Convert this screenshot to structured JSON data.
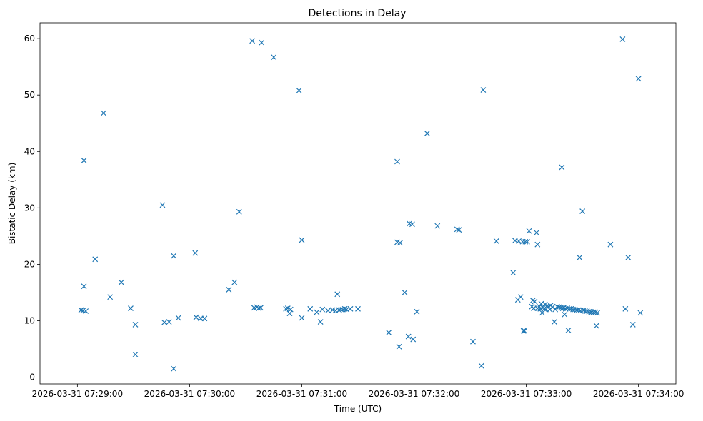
{
  "chart_data": {
    "type": "scatter",
    "title": "Detections in Delay",
    "xlabel": "Time (UTC)",
    "ylabel": "Bistatic Delay (km)",
    "marker": "x",
    "color": "#1f77b4",
    "grid": false,
    "xlim_seconds": [
      -20,
      320
    ],
    "ylim": [
      -1.2,
      62.8
    ],
    "x_ticks": [
      {
        "t": 0,
        "label": "2026-03-31 07:29:00"
      },
      {
        "t": 60,
        "label": "2026-03-31 07:30:00"
      },
      {
        "t": 120,
        "label": "2026-03-31 07:31:00"
      },
      {
        "t": 180,
        "label": "2026-03-31 07:32:00"
      },
      {
        "t": 240,
        "label": "2026-03-31 07:33:00"
      },
      {
        "t": 300,
        "label": "2026-03-31 07:34:00"
      }
    ],
    "y_ticks": [
      0,
      10,
      20,
      30,
      40,
      50,
      60
    ],
    "x_unit_note": "t is seconds after 2026-03-31 07:29:00 UTC",
    "series": [
      {
        "name": "detections",
        "points": [
          [
            2,
            11.9
          ],
          [
            3,
            11.8
          ],
          [
            3.5,
            38.4
          ],
          [
            3.5,
            16.1
          ],
          [
            4.5,
            11.7
          ],
          [
            9.5,
            20.9
          ],
          [
            14,
            46.8
          ],
          [
            17.5,
            14.2
          ],
          [
            23.5,
            16.8
          ],
          [
            28.5,
            12.2
          ],
          [
            31,
            9.3
          ],
          [
            31,
            4.0
          ],
          [
            45.5,
            30.5
          ],
          [
            46.5,
            9.7
          ],
          [
            49,
            9.8
          ],
          [
            51.5,
            21.5
          ],
          [
            51.5,
            1.5
          ],
          [
            54,
            10.5
          ],
          [
            63,
            22.0
          ],
          [
            63.5,
            10.6
          ],
          [
            66,
            10.4
          ],
          [
            68,
            10.4
          ],
          [
            81,
            15.5
          ],
          [
            84,
            16.8
          ],
          [
            86.5,
            29.3
          ],
          [
            93.5,
            59.6
          ],
          [
            94.5,
            12.3
          ],
          [
            96,
            12.4
          ],
          [
            97,
            12.2
          ],
          [
            98,
            12.3
          ],
          [
            98.5,
            59.3
          ],
          [
            105,
            56.7
          ],
          [
            111.5,
            12.1
          ],
          [
            112.5,
            12.2
          ],
          [
            113.5,
            11.3
          ],
          [
            114,
            12.0
          ],
          [
            118.5,
            50.8
          ],
          [
            120,
            10.5
          ],
          [
            120,
            24.3
          ],
          [
            124.5,
            12.1
          ],
          [
            128,
            11.5
          ],
          [
            130,
            9.8
          ],
          [
            131,
            12.0
          ],
          [
            134,
            11.8
          ],
          [
            136.5,
            11.9
          ],
          [
            138,
            11.8
          ],
          [
            139,
            14.7
          ],
          [
            140,
            11.9
          ],
          [
            141,
            12.0
          ],
          [
            142,
            12.0
          ],
          [
            143,
            12.1
          ],
          [
            144,
            12.0
          ],
          [
            146,
            12.1
          ],
          [
            150,
            12.1
          ],
          [
            166.5,
            7.9
          ],
          [
            171,
            38.2
          ],
          [
            171,
            23.9
          ],
          [
            172,
            5.4
          ],
          [
            172.5,
            23.8
          ],
          [
            175,
            15.0
          ],
          [
            177,
            7.2
          ],
          [
            177.5,
            27.2
          ],
          [
            179,
            27.1
          ],
          [
            179.5,
            6.7
          ],
          [
            181.5,
            11.6
          ],
          [
            187,
            43.2
          ],
          [
            192.5,
            26.8
          ],
          [
            203,
            26.2
          ],
          [
            204,
            26.1
          ],
          [
            211.5,
            6.3
          ],
          [
            216,
            2.0
          ],
          [
            217,
            50.9
          ],
          [
            224,
            24.1
          ],
          [
            233,
            18.5
          ],
          [
            234,
            24.2
          ],
          [
            235.5,
            13.7
          ],
          [
            236,
            24.1
          ],
          [
            237,
            14.2
          ],
          [
            238,
            24.0
          ],
          [
            238.5,
            8.2
          ],
          [
            239,
            8.2
          ],
          [
            239.5,
            24.0
          ],
          [
            240.5,
            24.0
          ],
          [
            241.5,
            25.9
          ],
          [
            243,
            12.5
          ],
          [
            243.5,
            13.6
          ],
          [
            244,
            12.2
          ],
          [
            244.5,
            13.4
          ],
          [
            245.5,
            25.6
          ],
          [
            246,
            12.2
          ],
          [
            246,
            23.5
          ],
          [
            247,
            12.5
          ],
          [
            247.5,
            12.1
          ],
          [
            248,
            13.0
          ],
          [
            248.5,
            11.4
          ],
          [
            249,
            12.3
          ],
          [
            249.5,
            12.1
          ],
          [
            250,
            12.9
          ],
          [
            250.5,
            12.0
          ],
          [
            251,
            12.6
          ],
          [
            252,
            12.5
          ],
          [
            252.5,
            12.0
          ],
          [
            253,
            12.7
          ],
          [
            254,
            12.4
          ],
          [
            255,
            9.8
          ],
          [
            255.5,
            12.0
          ],
          [
            256.5,
            12.5
          ],
          [
            257.5,
            12.4
          ],
          [
            258.5,
            12.3
          ],
          [
            259,
            37.2
          ],
          [
            259.5,
            12.2
          ],
          [
            260,
            12.3
          ],
          [
            260.5,
            11.1
          ],
          [
            261,
            12.1
          ],
          [
            262,
            12.2
          ],
          [
            262.5,
            8.3
          ],
          [
            263,
            12.1
          ],
          [
            264,
            12.1
          ],
          [
            265,
            12.0
          ],
          [
            266,
            12.0
          ],
          [
            267,
            11.9
          ],
          [
            268,
            11.9
          ],
          [
            268.5,
            21.2
          ],
          [
            269,
            11.8
          ],
          [
            270,
            29.4
          ],
          [
            270.5,
            11.8
          ],
          [
            271.5,
            11.7
          ],
          [
            272.5,
            11.7
          ],
          [
            273.5,
            11.6
          ],
          [
            274.5,
            11.6
          ],
          [
            275,
            11.5
          ],
          [
            276,
            11.5
          ],
          [
            277,
            11.5
          ],
          [
            277.5,
            9.1
          ],
          [
            278,
            11.4
          ],
          [
            285,
            23.5
          ],
          [
            291.5,
            59.9
          ],
          [
            293,
            12.1
          ],
          [
            294.5,
            21.2
          ],
          [
            297,
            9.3
          ],
          [
            300,
            52.9
          ],
          [
            301,
            11.4
          ]
        ]
      }
    ]
  }
}
